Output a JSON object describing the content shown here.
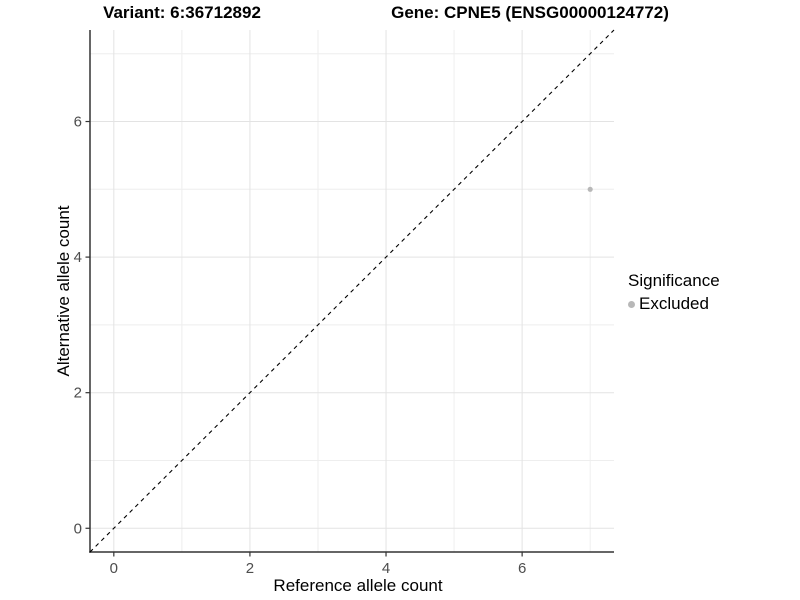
{
  "titles": {
    "variant": "Variant: 6:36712892",
    "gene": "Gene: CPNE5 (ENSG00000124772)"
  },
  "chart_data": {
    "type": "scatter",
    "title_left": "Variant: 6:36712892",
    "title_right": "Gene: CPNE5 (ENSG00000124772)",
    "xlabel": "Reference allele count",
    "ylabel": "Alternative allele count",
    "xlim": [
      -0.35,
      7.35
    ],
    "ylim": [
      -0.35,
      7.35
    ],
    "x_ticks": [
      0,
      2,
      4,
      6
    ],
    "y_ticks": [
      0,
      2,
      4,
      6
    ],
    "x_minor_ticks": [
      1,
      3,
      5,
      7
    ],
    "y_minor_ticks": [
      1,
      3,
      5,
      7
    ],
    "grid": true,
    "reference_line": {
      "type": "identity",
      "style": "dashed",
      "color": "#000000"
    },
    "series": [
      {
        "name": "Excluded",
        "color": "#b8b8b8",
        "points": [
          {
            "x": 7,
            "y": 5
          }
        ]
      }
    ],
    "legend": {
      "title": "Significance",
      "position": "right",
      "items": [
        {
          "label": "Excluded",
          "color": "#b8b8b8"
        }
      ]
    }
  },
  "colors": {
    "background": "#ffffff",
    "grid_major": "#e3e3e3",
    "grid_minor": "#eeeeee",
    "axis_line": "#333333",
    "tick_mark": "#333333",
    "tick_label": "#4d4d4d",
    "title": "#000000",
    "point": "#b8b8b8"
  }
}
